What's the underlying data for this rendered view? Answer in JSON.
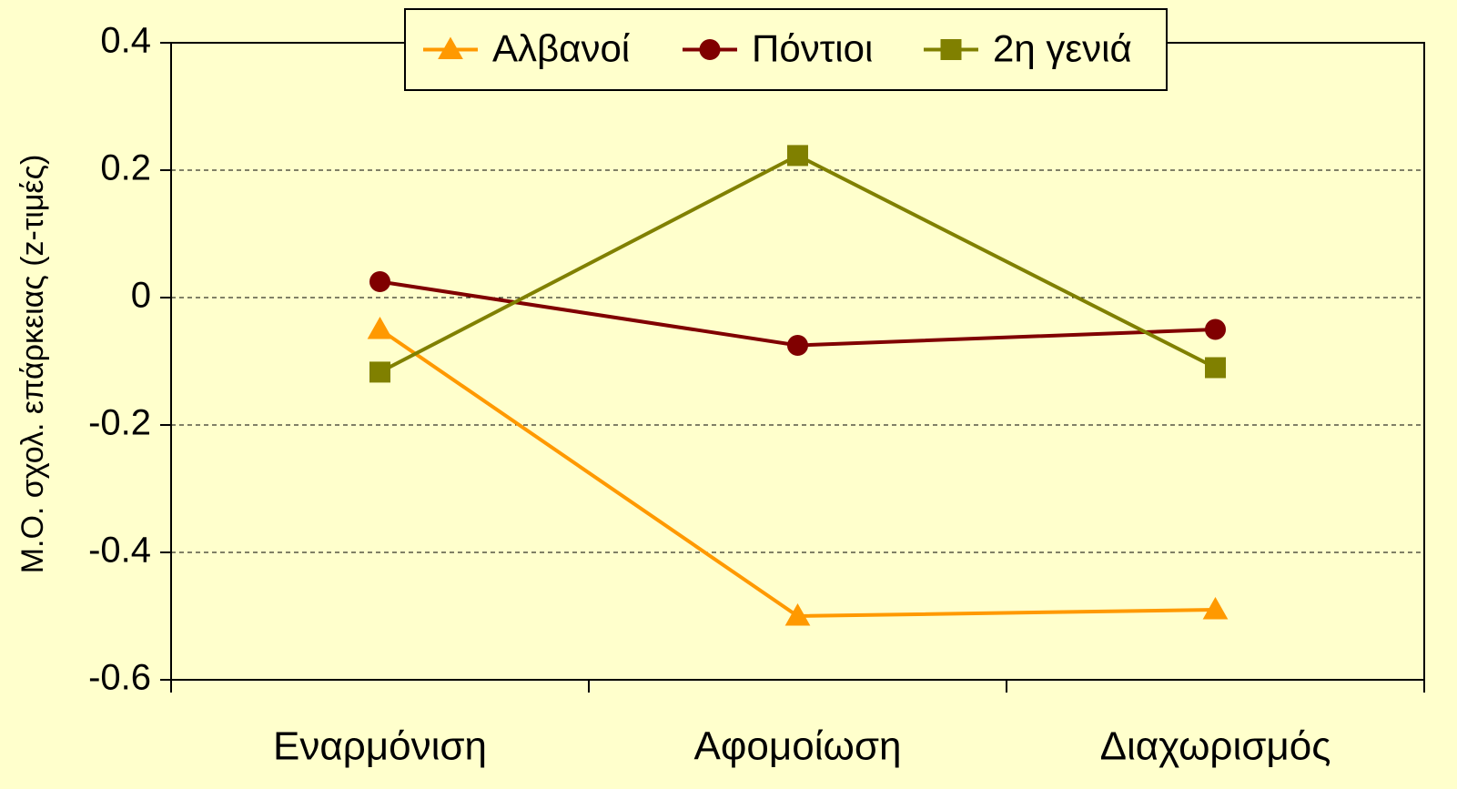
{
  "chart_data": {
    "type": "line",
    "y_axis_label": "Μ.Ο. σχολ. επάρκειας (z-τιμές)",
    "categories": [
      "Εναρμόνιση",
      "Αφομοίωση",
      "Διαχωρισμός"
    ],
    "series": [
      {
        "name": "Αλβανοί",
        "color": "#ff9900",
        "marker": "triangle",
        "values": [
          -0.05,
          -0.5,
          -0.49
        ]
      },
      {
        "name": "Πόντιοι",
        "color": "#800000",
        "marker": "circle",
        "values": [
          0.025,
          -0.075,
          -0.05
        ]
      },
      {
        "name": "2η γενιά",
        "color": "#808000",
        "marker": "square",
        "values": [
          -0.117,
          0.223,
          -0.11
        ]
      }
    ],
    "ylim": [
      -0.6,
      0.4
    ],
    "yticks": [
      0.4,
      0.2,
      0,
      -0.2,
      -0.4,
      -0.6
    ],
    "grid": true,
    "legend": "top"
  }
}
